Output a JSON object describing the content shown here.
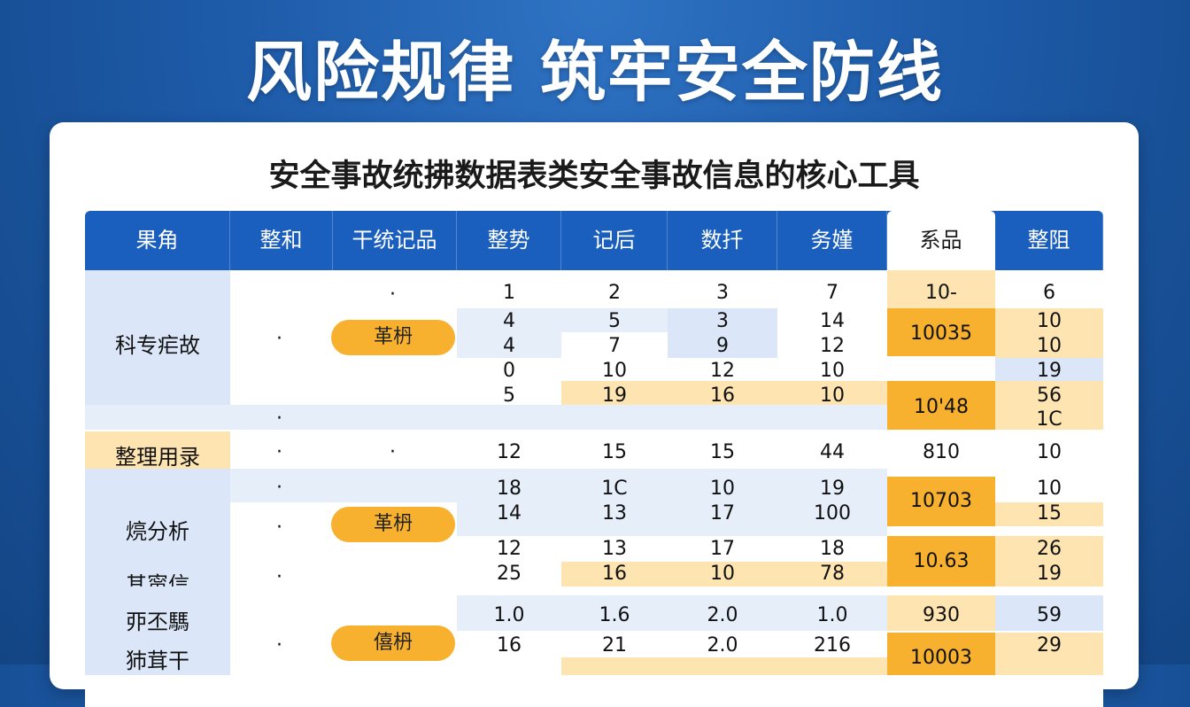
{
  "hero": {
    "title": "风险规律 筑牢安全防线"
  },
  "card": {
    "title": "安全事故统拂数据表类安全事故信息的核心工具"
  },
  "table": {
    "headers": [
      "果角",
      "整和",
      "干统记品",
      "整势",
      "记后",
      "数扦",
      "务嫤",
      "系品",
      "整阻"
    ],
    "row_labels": [
      "科专疟故",
      "整理用录",
      "煷分析",
      "其甯信",
      "丣丕騳",
      "犻茸干"
    ],
    "pills": [
      "革枬",
      "革枬",
      "僖枬"
    ],
    "section1": {
      "dot_col2": "·",
      "dot_col3": "·",
      "rows": [
        [
          "1",
          "2",
          "3",
          "7",
          "6"
        ],
        [
          "4",
          "5",
          "3",
          "14",
          "10"
        ],
        [
          "4",
          "7",
          "9",
          "12",
          "10"
        ],
        [
          "0",
          "10",
          "12",
          "10",
          "19"
        ],
        [
          "5",
          "19",
          "16",
          "10",
          "56"
        ],
        [
          "",
          "",
          "",
          "",
          "1C"
        ]
      ],
      "merged": [
        "10-",
        "10035",
        "10'48"
      ]
    },
    "spacer_dots": [
      "·",
      "·"
    ],
    "section2": {
      "dots": [
        "·",
        "·"
      ],
      "row": [
        "12",
        "15",
        "15",
        "44",
        "810",
        "10"
      ]
    },
    "section3": {
      "rows": [
        [
          "18",
          "1C",
          "10",
          "19",
          "10"
        ],
        [
          "14",
          "13",
          "17",
          "100",
          "15"
        ],
        [
          "12",
          "13",
          "17",
          "18",
          "26"
        ],
        [
          "25",
          "16",
          "10",
          "78",
          "19"
        ]
      ],
      "merged": [
        "10703",
        "10.63"
      ],
      "dots": [
        "·",
        "·",
        "·",
        "·"
      ]
    },
    "section4": {
      "rows": [
        [
          "1.0",
          "1.6",
          "2.0",
          "1.0",
          "930",
          "59"
        ],
        [
          "16",
          "21",
          "2.0",
          "216",
          "",
          "29"
        ]
      ],
      "merged_last": "10003",
      "dot": "·"
    }
  }
}
